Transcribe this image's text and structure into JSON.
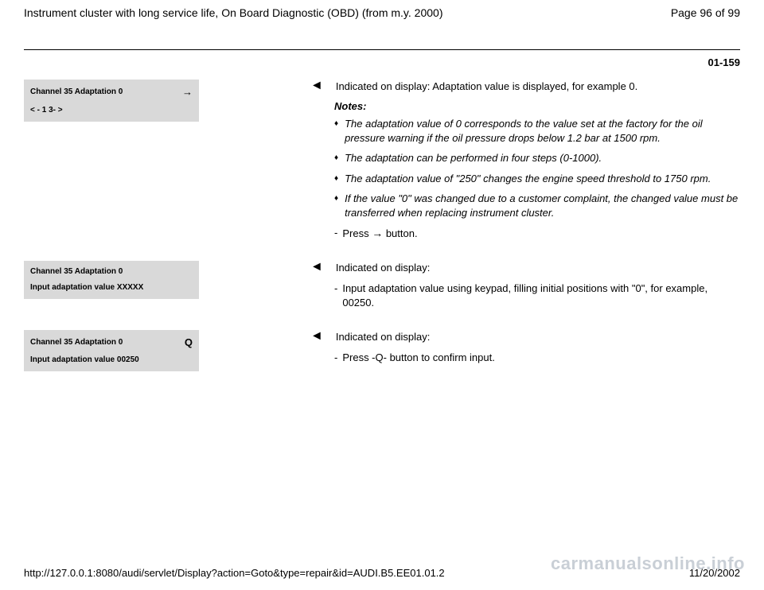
{
  "header": {
    "title": "Instrument cluster with long service life, On Board Diagnostic (OBD) (from m.y. 2000)",
    "page_label": "Page 96 of 99"
  },
  "section_number": "01-159",
  "blocks": [
    {
      "display": {
        "line1_left": "Channel 35 Adaptation 0",
        "line1_right_arrow": "→",
        "line2": "<  - 1 3-  >"
      },
      "lead": "Indicated on display: Adaptation value is displayed, for example 0.",
      "notes_label": "Notes:",
      "notes": [
        "The adaptation value of 0 corresponds to the value set at the factory for the oil pressure warning if the oil pressure drops below 1.2 bar at 1500 rpm.",
        "The adaptation can be performed in four steps (0-1000).",
        "The adaptation value of \"250\" changes the engine speed threshold to 1750 rpm.",
        "If the value \"0\" was changed due to a customer complaint, the changed value must be transferred when replacing instrument cluster."
      ],
      "dash_items_after": [
        {
          "prefix": "Press",
          "arrow": "→",
          "suffix": "button."
        }
      ]
    },
    {
      "display": {
        "line1_left": "Channel 35 Adaptation 0",
        "line1_right_arrow": "",
        "line2": "Input adaptation value XXXXX"
      },
      "lead": "Indicated on display:",
      "dash_items": [
        "Input adaptation value using keypad, filling initial positions with \"0\", for example, 00250."
      ]
    },
    {
      "display": {
        "line1_left": "Channel 35 Adaptation 0",
        "line1_right_arrow": "Q",
        "line2": "Input adaptation value 00250"
      },
      "lead": "Indicated on display:",
      "dash_items": [
        "Press -Q- button to confirm input."
      ]
    }
  ],
  "watermark": "carmanualsonline.info",
  "footer": {
    "url": "http://127.0.0.1:8080/audi/servlet/Display?action=Goto&type=repair&id=AUDI.B5.EE01.01.2",
    "date": "11/20/2002"
  }
}
